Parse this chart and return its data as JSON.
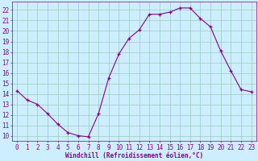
{
  "x": [
    0,
    1,
    2,
    3,
    4,
    5,
    6,
    7,
    8,
    9,
    10,
    11,
    12,
    13,
    14,
    15,
    16,
    17,
    18,
    19,
    20,
    21,
    22,
    23
  ],
  "y": [
    14.3,
    13.4,
    13.0,
    12.1,
    11.1,
    10.3,
    10.0,
    9.9,
    12.1,
    15.5,
    17.8,
    19.3,
    20.1,
    21.6,
    21.6,
    21.8,
    22.2,
    22.2,
    21.2,
    20.4,
    18.1,
    16.2,
    14.4,
    14.2
  ],
  "line_color": "#880088",
  "marker": "+",
  "bg_color": "#cceeff",
  "grid_color": "#99ccbb",
  "xlabel": "Windchill (Refroidissement éolien,°C)",
  "ylabel_ticks": [
    10,
    11,
    12,
    13,
    14,
    15,
    16,
    17,
    18,
    19,
    20,
    21,
    22
  ],
  "xlim": [
    -0.5,
    23.5
  ],
  "ylim": [
    9.5,
    22.8
  ],
  "tick_fontsize": 5.5,
  "xlabel_fontsize": 5.5
}
